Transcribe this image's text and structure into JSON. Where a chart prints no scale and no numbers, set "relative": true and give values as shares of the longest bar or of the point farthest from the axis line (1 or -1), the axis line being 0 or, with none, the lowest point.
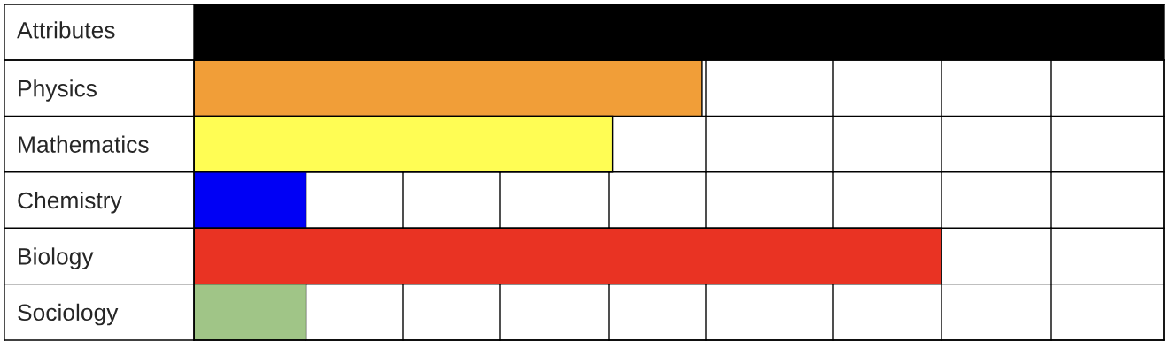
{
  "chart_data": {
    "type": "bar",
    "orientation": "horizontal",
    "relative": true,
    "grid": true,
    "ylabel": "Attributes",
    "categories": [
      "Physics",
      "Mathematics",
      "Chemistry",
      "Biology",
      "Sociology"
    ],
    "values": [
      0.68,
      0.56,
      0.15,
      1,
      0.15
    ],
    "colors": [
      "#f19e38",
      "#fffd54",
      "#0000f5",
      "#e93323",
      "#a0c587"
    ]
  }
}
